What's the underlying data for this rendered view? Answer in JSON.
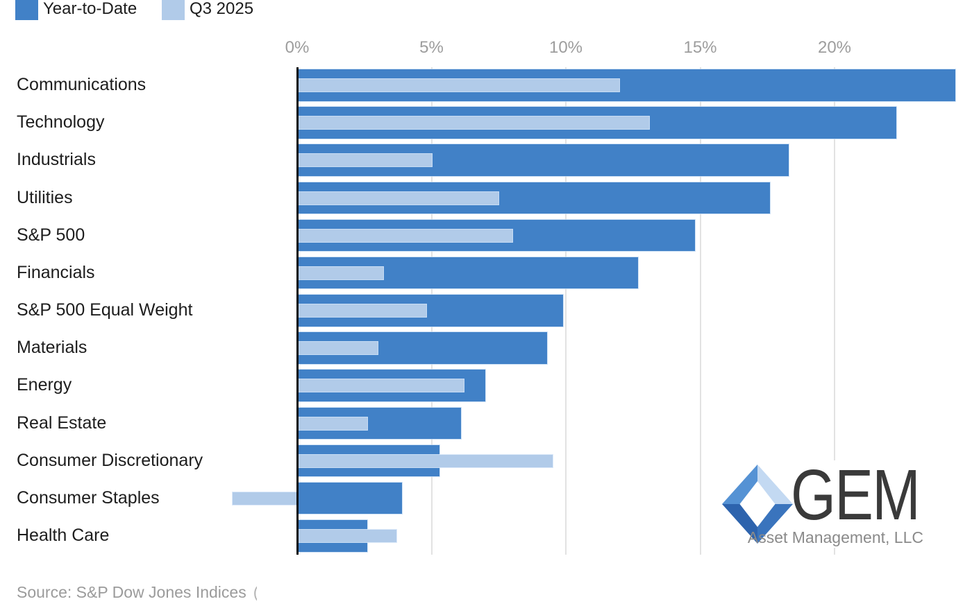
{
  "chart_data": {
    "type": "bar",
    "orientation": "horizontal",
    "categories": [
      "Communications",
      "Technology",
      "Industrials",
      "Utilities",
      "S&P 500",
      "Financials",
      "S&P 500 Equal Weight",
      "Materials",
      "Energy",
      "Real Estate",
      "Consumer Discretionary",
      "Consumer Staples",
      "Health Care"
    ],
    "series": [
      {
        "name": "Year-to-Date",
        "color": "#4181c7",
        "values": [
          24.5,
          22.3,
          18.3,
          17.6,
          14.8,
          12.7,
          9.9,
          9.3,
          7.0,
          6.1,
          5.3,
          3.9,
          2.6
        ]
      },
      {
        "name": "Q3 2025",
        "color": "#b1cbe9",
        "values": [
          12.0,
          13.1,
          5.0,
          7.5,
          8.0,
          3.2,
          4.8,
          3.0,
          6.2,
          2.6,
          9.5,
          -2.4,
          3.7
        ]
      }
    ],
    "x_axis": {
      "unit": "%",
      "tick_labels": [
        "0%",
        "5%",
        "10%",
        "15%",
        "20%"
      ],
      "tick_values": [
        0,
        5,
        10,
        15,
        20
      ],
      "min": -2.4,
      "max": 25.1
    },
    "grid": true,
    "legend_position": "top-left",
    "title": ""
  },
  "logo": {
    "text": "GEM",
    "subtext": "Asset Management, LLC"
  },
  "footer": {
    "source_text": "Source: S&P Dow Jones Indices",
    "source_partial": "("
  },
  "colors": {
    "bar_dark": "#4181c7",
    "bar_light": "#b1cbe9",
    "axis_line": "#0a0a0a",
    "gridline": "#e2e2e2",
    "tick_label": "#9d9d9d",
    "category_label": "#1d1d1d",
    "source_text": "#9b9b9b",
    "logo_text": "#3a3a3a",
    "logo_subtext": "#8a8a8a"
  }
}
